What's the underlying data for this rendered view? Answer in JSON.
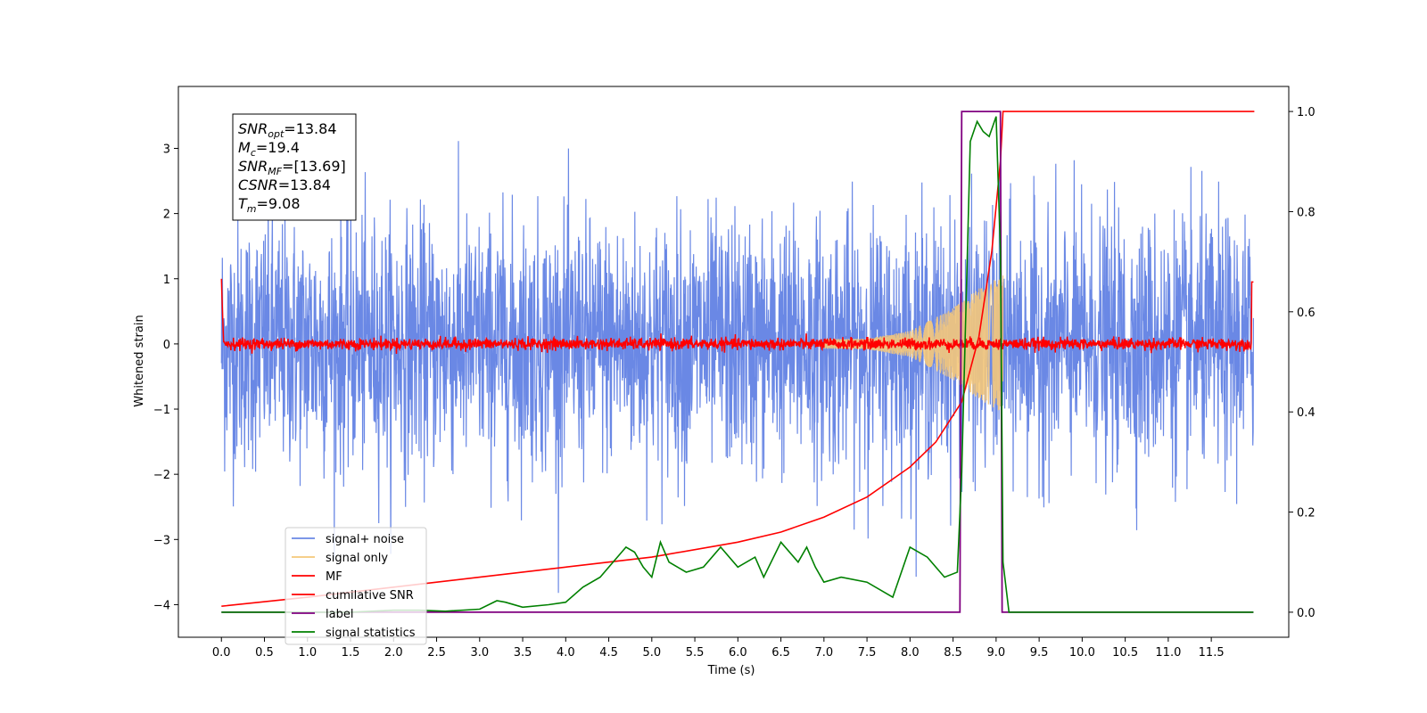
{
  "chart_data": {
    "type": "line",
    "xlabel": "Time (s)",
    "ylabel": "Whitened strain",
    "xlim": [
      -0.5,
      12.4
    ],
    "ylim": [
      -4.5,
      3.95
    ],
    "y2lim": [
      -0.05,
      1.05
    ],
    "x_ticks": [
      "0.0",
      "0.5",
      "1.0",
      "1.5",
      "2.0",
      "2.5",
      "3.0",
      "3.5",
      "4.0",
      "4.5",
      "5.0",
      "5.5",
      "6.0",
      "6.5",
      "7.0",
      "7.5",
      "8.0",
      "8.5",
      "9.0",
      "9.5",
      "10.0",
      "10.5",
      "11.0",
      "11.5"
    ],
    "y_ticks": [
      "3",
      "2",
      "1",
      "0",
      "−1",
      "−2",
      "−3",
      "−4"
    ],
    "y2_ticks": [
      "1.0",
      "0.8",
      "0.6",
      "0.4",
      "0.2",
      "0.0"
    ],
    "legend_position": "lower-left",
    "annotation": [
      {
        "base": "SNR",
        "sub": "opt",
        "value": "=13.84"
      },
      {
        "base": "M",
        "sub": "c",
        "value": "=19.4"
      },
      {
        "base": "SNR",
        "sub": "MF",
        "value": "=[13.69]"
      },
      {
        "base": "CSNR",
        "sub": "",
        "value": "=13.84"
      },
      {
        "base": "T",
        "sub": "m",
        "value": "=9.08"
      }
    ],
    "series": [
      {
        "name": "signal+ noise",
        "color": "#6a88e5",
        "axis": "left",
        "x_range": [
          0,
          11.99
        ],
        "envelope": [
          -2.0,
          2.0
        ],
        "peak_max": 3.3,
        "peak_min": -4.1
      },
      {
        "name": "signal only",
        "color": "#f5c87a",
        "axis": "left",
        "x": [
          0,
          7.5,
          8.0,
          8.5,
          8.8,
          9.0,
          9.08
        ],
        "amplitude": [
          0.02,
          0.08,
          0.2,
          0.55,
          0.85,
          1.0,
          1.05
        ]
      },
      {
        "name": "MF",
        "color": "#ff0000",
        "axis": "left",
        "x_range": [
          0,
          11.99
        ],
        "baseline": 0.0,
        "amplitude": 0.1
      },
      {
        "name": "cumilative SNR",
        "color": "#ff0000",
        "axis": "right",
        "x": [
          0,
          1,
          2,
          3,
          4,
          5,
          6,
          6.5,
          7,
          7.5,
          8,
          8.3,
          8.6,
          8.8,
          8.95,
          9.05,
          9.08,
          12.0
        ],
        "y": [
          0.012,
          0.03,
          0.05,
          0.07,
          0.09,
          0.11,
          0.14,
          0.16,
          0.19,
          0.23,
          0.29,
          0.34,
          0.42,
          0.55,
          0.72,
          0.9,
          1.0,
          1.0
        ]
      },
      {
        "name": "label",
        "color": "#800080",
        "axis": "right",
        "x": [
          0,
          8.58,
          8.6,
          9.05,
          9.07,
          11.99
        ],
        "y": [
          0,
          0,
          1,
          1,
          0,
          0
        ]
      },
      {
        "name": "signal statistics",
        "color": "#008000",
        "axis": "right",
        "x": [
          0,
          0.5,
          1.0,
          1.5,
          2.0,
          2.3,
          2.6,
          3.0,
          3.2,
          3.3,
          3.5,
          3.8,
          4.0,
          4.2,
          4.4,
          4.6,
          4.7,
          4.8,
          4.9,
          5.0,
          5.1,
          5.2,
          5.4,
          5.6,
          5.8,
          6.0,
          6.2,
          6.3,
          6.5,
          6.7,
          6.8,
          6.9,
          7.0,
          7.2,
          7.5,
          7.8,
          8.0,
          8.2,
          8.4,
          8.55,
          8.6,
          8.7,
          8.78,
          8.85,
          8.92,
          9.0,
          9.05,
          9.08,
          9.15,
          11.99
        ],
        "y": [
          0.0,
          0.0,
          0.0,
          0.0,
          0.004,
          0.004,
          0.002,
          0.006,
          0.023,
          0.02,
          0.01,
          0.015,
          0.02,
          0.05,
          0.07,
          0.11,
          0.13,
          0.12,
          0.09,
          0.07,
          0.14,
          0.1,
          0.08,
          0.09,
          0.13,
          0.09,
          0.11,
          0.07,
          0.14,
          0.1,
          0.13,
          0.09,
          0.06,
          0.07,
          0.06,
          0.03,
          0.13,
          0.11,
          0.07,
          0.08,
          0.28,
          0.94,
          0.98,
          0.96,
          0.95,
          0.99,
          0.72,
          0.1,
          0.0,
          0.0
        ]
      }
    ]
  }
}
